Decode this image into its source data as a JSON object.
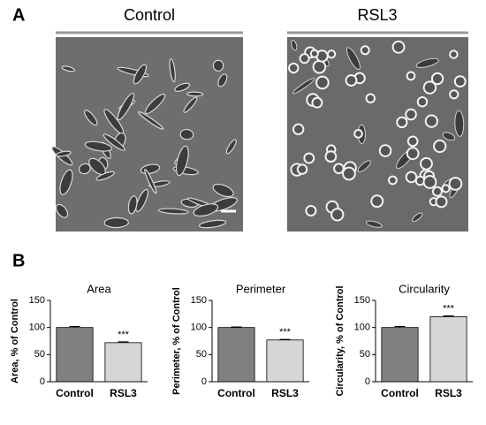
{
  "panel_a": {
    "label": "A",
    "images": [
      {
        "title": "Control"
      },
      {
        "title": "RSL3"
      }
    ]
  },
  "panel_b_label": "B",
  "chart_data": [
    {
      "type": "bar",
      "title": "Area",
      "y_label": "Area, % of Control",
      "categories": [
        "Control",
        "RSL3"
      ],
      "values": [
        100,
        72
      ],
      "errors": [
        2,
        1.5
      ],
      "colors": [
        "#808080",
        "#d6d6d6"
      ],
      "ylim": [
        0,
        150
      ],
      "yticks": [
        0,
        50,
        100,
        150
      ],
      "annotations": [
        {
          "text": "***",
          "category": "RSL3"
        }
      ]
    },
    {
      "type": "bar",
      "title": "Perimeter",
      "y_label": "Perimeter, % of Control",
      "categories": [
        "Control",
        "RSL3"
      ],
      "values": [
        100,
        77
      ],
      "errors": [
        1,
        1
      ],
      "colors": [
        "#808080",
        "#d6d6d6"
      ],
      "ylim": [
        0,
        150
      ],
      "yticks": [
        0,
        50,
        100,
        150
      ],
      "annotations": [
        {
          "text": "***",
          "category": "RSL3"
        }
      ]
    },
    {
      "type": "bar",
      "title": "Circularity",
      "y_label": "Circularity, % of Control",
      "categories": [
        "Control",
        "RSL3"
      ],
      "values": [
        100,
        120
      ],
      "errors": [
        2,
        1.5
      ],
      "colors": [
        "#808080",
        "#d6d6d6"
      ],
      "ylim": [
        0,
        150
      ],
      "yticks": [
        0,
        50,
        100,
        150
      ],
      "annotations": [
        {
          "text": "***",
          "category": "RSL3"
        }
      ]
    }
  ]
}
